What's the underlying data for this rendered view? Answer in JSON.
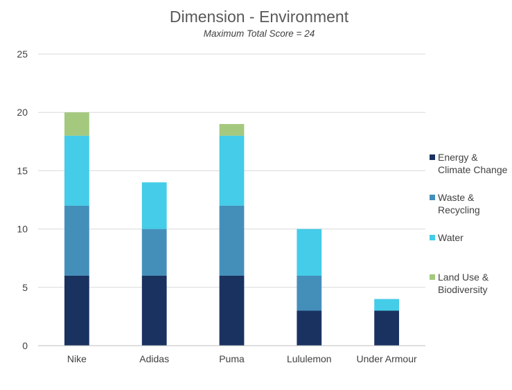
{
  "chart_data": {
    "type": "bar",
    "stacked": true,
    "title": "Dimension - Environment",
    "subtitle": "Maximum Total Score = 24",
    "xlabel": "",
    "ylabel": "",
    "ylim": [
      0,
      25
    ],
    "yticks": [
      "0",
      "5",
      "10",
      "15",
      "20",
      "25"
    ],
    "grid": true,
    "legend_position": "right",
    "categories": [
      "Nike",
      "Adidas",
      "Puma",
      "Lululemon",
      "Under Armour"
    ],
    "series": [
      {
        "name": "Energy & Climate Change",
        "legend_lines": [
          "Energy &",
          "Climate Change"
        ],
        "color": "#1a3260",
        "values": [
          6,
          6,
          6,
          3,
          3
        ]
      },
      {
        "name": "Waste & Recycling",
        "legend_lines": [
          "Waste &",
          "Recycling"
        ],
        "color": "#448fba",
        "values": [
          6,
          4,
          6,
          3,
          0
        ]
      },
      {
        "name": "Water",
        "legend_lines": [
          "Water"
        ],
        "color": "#44cce8",
        "values": [
          6,
          4,
          6,
          4,
          1
        ]
      },
      {
        "name": "Land Use & Biodiversity",
        "legend_lines": [
          "Land Use &",
          "Biodiversity"
        ],
        "color": "#a4c97e",
        "values": [
          2,
          0,
          1,
          0,
          0
        ]
      }
    ]
  }
}
